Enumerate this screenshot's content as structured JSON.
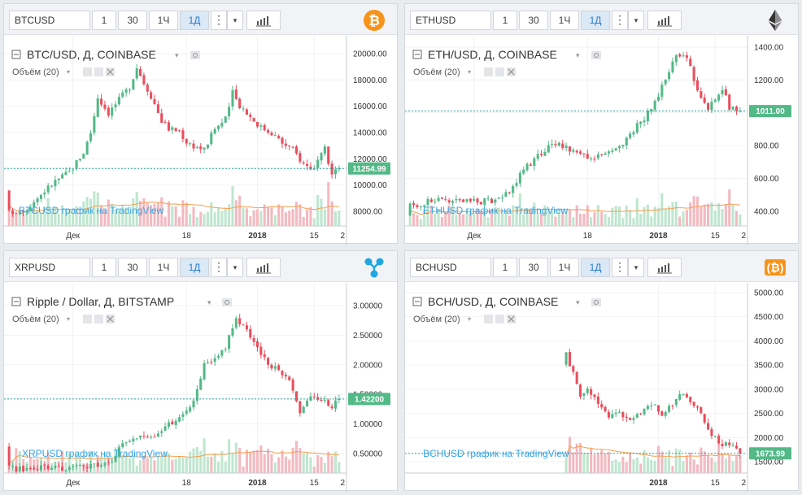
{
  "toolbar": {
    "intervals": [
      "1",
      "30",
      "1Ч",
      "1Д"
    ],
    "active_interval": "1Д",
    "dots": "⋮",
    "caret": "▾"
  },
  "colors": {
    "up": "#53b987",
    "down": "#eb4d5c",
    "vol_up": "#bfe6cf",
    "vol_down": "#f4b9c0",
    "ma": "#f2a04f",
    "price_line": "#26a69a",
    "watermark": "#36a3e5"
  },
  "panels": [
    {
      "symbol": "BTCUSD",
      "title": "BTC/USD, Д, COINBASE",
      "volume_label": "Объём (20)",
      "watermark": "BTCUSD график на TradingView",
      "coin_icon": "bitcoin-icon",
      "last_price": "11254.99",
      "y_ticks": [
        "20000.00",
        "18000.00",
        "16000.00",
        "14000.00",
        "12000.00",
        "10000.00",
        "8000.00"
      ],
      "x_ticks": [
        "Дек",
        "18",
        "2018",
        "15",
        "2"
      ],
      "chart_data": {
        "type": "candlestick",
        "ylim": [
          7000,
          21000
        ],
        "last": 11254.99,
        "x_axis": [
          "Дек",
          "18",
          "2018",
          "15",
          "2"
        ],
        "anchors": [
          [
            0,
            7900
          ],
          [
            5,
            8200
          ],
          [
            9,
            9300
          ],
          [
            13,
            10300
          ],
          [
            17,
            11000
          ],
          [
            21,
            12500
          ],
          [
            23,
            14000
          ],
          [
            25,
            16700
          ],
          [
            28,
            15500
          ],
          [
            31,
            16500
          ],
          [
            34,
            17500
          ],
          [
            36,
            19000
          ],
          [
            38,
            17800
          ],
          [
            40,
            16800
          ],
          [
            43,
            14900
          ],
          [
            45,
            14300
          ],
          [
            48,
            14100
          ],
          [
            50,
            13300
          ],
          [
            52,
            13000
          ],
          [
            55,
            12700
          ],
          [
            58,
            14300
          ],
          [
            61,
            15000
          ],
          [
            63,
            17000
          ],
          [
            65,
            16100
          ],
          [
            68,
            15200
          ],
          [
            71,
            14400
          ],
          [
            74,
            14000
          ],
          [
            77,
            13200
          ],
          [
            80,
            12700
          ],
          [
            83,
            11600
          ],
          [
            86,
            11200
          ],
          [
            89,
            12700
          ],
          [
            91,
            10800
          ],
          [
            93,
            11254
          ]
        ]
      }
    },
    {
      "symbol": "ETHUSD",
      "title": "ETH/USD, Д, COINBASE",
      "volume_label": "Объём (20)",
      "watermark": "ETHUSD график на TradingView",
      "coin_icon": "ethereum-icon",
      "last_price": "1011.00",
      "y_ticks": [
        "1400.00",
        "1200.00",
        "1000.00",
        "800.00",
        "600.00",
        "400.00"
      ],
      "x_ticks": [
        "Дек",
        "18",
        "2018",
        "15",
        "2"
      ],
      "chart_data": {
        "type": "candlestick",
        "ylim": [
          320,
          1440
        ],
        "last": 1011,
        "x_axis": [
          "Дек",
          "18",
          "2018",
          "15",
          "2"
        ],
        "anchors": [
          [
            0,
            430
          ],
          [
            6,
            465
          ],
          [
            11,
            470
          ],
          [
            16,
            455
          ],
          [
            21,
            460
          ],
          [
            26,
            470
          ],
          [
            30,
            590
          ],
          [
            32,
            650
          ],
          [
            35,
            710
          ],
          [
            38,
            780
          ],
          [
            41,
            810
          ],
          [
            44,
            790
          ],
          [
            47,
            760
          ],
          [
            50,
            720
          ],
          [
            53,
            730
          ],
          [
            56,
            750
          ],
          [
            59,
            800
          ],
          [
            62,
            870
          ],
          [
            66,
            970
          ],
          [
            69,
            1060
          ],
          [
            72,
            1200
          ],
          [
            75,
            1360
          ],
          [
            78,
            1350
          ],
          [
            80,
            1200
          ],
          [
            82,
            1100
          ],
          [
            84,
            1020
          ],
          [
            86,
            1100
          ],
          [
            88,
            1150
          ],
          [
            90,
            1030
          ],
          [
            93,
            1011
          ]
        ]
      }
    },
    {
      "symbol": "XRPUSD",
      "title": "Ripple / Dollar, Д, BITSTAMP",
      "volume_label": "Объём (20)",
      "watermark": "XRPUSD график на TradingView",
      "coin_icon": "ripple-icon",
      "last_price": "1.42200",
      "y_ticks": [
        "3.00000",
        "2.50000",
        "2.00000",
        "1.50000",
        "1.00000",
        "0.50000"
      ],
      "x_ticks": [
        "Дек",
        "18",
        "2018",
        "15",
        "2"
      ],
      "chart_data": {
        "type": "candlestick",
        "ylim": [
          0.2,
          3.3
        ],
        "last": 1.422,
        "x_axis": [
          "Дек",
          "18",
          "2018",
          "15",
          "2"
        ],
        "anchors": [
          [
            0,
            0.25
          ],
          [
            8,
            0.25
          ],
          [
            14,
            0.26
          ],
          [
            20,
            0.26
          ],
          [
            26,
            0.3
          ],
          [
            30,
            0.45
          ],
          [
            32,
            0.7
          ],
          [
            35,
            0.75
          ],
          [
            40,
            0.78
          ],
          [
            43,
            0.9
          ],
          [
            47,
            1.05
          ],
          [
            50,
            1.2
          ],
          [
            52,
            1.4
          ],
          [
            55,
            2.0
          ],
          [
            58,
            2.1
          ],
          [
            61,
            2.3
          ],
          [
            64,
            2.8
          ],
          [
            67,
            2.6
          ],
          [
            70,
            2.3
          ],
          [
            73,
            2.0
          ],
          [
            76,
            1.9
          ],
          [
            79,
            1.7
          ],
          [
            82,
            1.2
          ],
          [
            85,
            1.5
          ],
          [
            88,
            1.4
          ],
          [
            91,
            1.3
          ],
          [
            93,
            1.42
          ]
        ]
      }
    },
    {
      "symbol": "BCHUSD",
      "title": "BCH/USD, Д, COINBASE",
      "volume_label": "Объём (20)",
      "watermark": "BCHUSD график на TradingView",
      "coin_icon": "bitcoin-cash-icon",
      "last_price": "1673.99",
      "y_ticks": [
        "5000.00",
        "4500.00",
        "4000.00",
        "3500.00",
        "3000.00",
        "2500.00",
        "2000.00",
        "1500.00"
      ],
      "x_ticks": [
        "2018",
        "15",
        "2"
      ],
      "chart_data": {
        "type": "candlestick",
        "ylim": [
          1300,
          5100
        ],
        "last": 1673.99,
        "start_index": 44,
        "x_axis": [
          "2018",
          "15",
          "2"
        ],
        "anchors": [
          [
            44,
            3700
          ],
          [
            46,
            3300
          ],
          [
            48,
            2900
          ],
          [
            50,
            3000
          ],
          [
            52,
            2800
          ],
          [
            54,
            2650
          ],
          [
            56,
            2400
          ],
          [
            59,
            2500
          ],
          [
            62,
            2350
          ],
          [
            65,
            2500
          ],
          [
            68,
            2700
          ],
          [
            71,
            2500
          ],
          [
            74,
            2700
          ],
          [
            77,
            2900
          ],
          [
            80,
            2700
          ],
          [
            82,
            2500
          ],
          [
            84,
            2200
          ],
          [
            86,
            2000
          ],
          [
            88,
            1800
          ],
          [
            90,
            1900
          ],
          [
            92,
            1750
          ],
          [
            93,
            1674
          ]
        ]
      }
    }
  ]
}
